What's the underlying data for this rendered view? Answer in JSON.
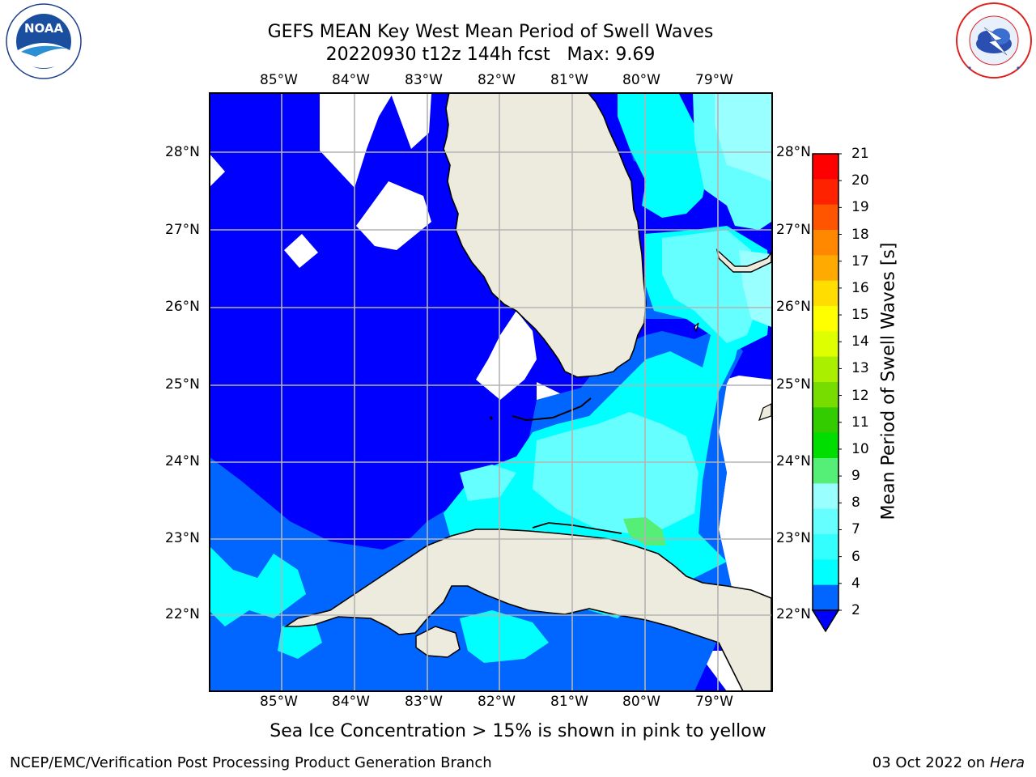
{
  "title": {
    "line1": "GEFS MEAN Key West Mean Period of Swell Waves",
    "line2": "20220930 t12z 144h fcst   Max: 9.69"
  },
  "map": {
    "lon_labels": [
      "85°W",
      "84°W",
      "83°W",
      "82°W",
      "81°W",
      "80°W",
      "79°W"
    ],
    "lat_labels": [
      "28°N",
      "27°N",
      "26°N",
      "25°N",
      "24°N",
      "23°N",
      "22°N"
    ],
    "colors": {
      "land": "#ecebdd",
      "grid": "#b4b4b4",
      "coast": "#000000"
    }
  },
  "colorbar": {
    "label": "Mean Period of Swell Waves [s]",
    "ticks": [
      "2",
      "4",
      "6",
      "7",
      "8",
      "9",
      "10",
      "11",
      "12",
      "13",
      "14",
      "15",
      "16",
      "17",
      "18",
      "19",
      "20",
      "21"
    ],
    "colors": [
      "#0000ff",
      "#0066ff",
      "#00ffff",
      "#33ffff",
      "#66ffff",
      "#99ffff",
      "#55ee77",
      "#00dd00",
      "#33cc00",
      "#77dd00",
      "#aaee00",
      "#ddff00",
      "#ffff00",
      "#ffdd00",
      "#ffaa00",
      "#ff8800",
      "#ff5500",
      "#ff2200",
      "#ff0000"
    ]
  },
  "logos": {
    "noaa": "NOAA",
    "nws": "NATIONAL WEATHER SERVICE"
  },
  "note": "Sea Ice Concentration > 15% is shown in pink to yellow",
  "footer": {
    "left": "NCEP/EMC/Verification Post Processing Product Generation Branch",
    "date": "03 Oct 2022 on",
    "machine": "Hera"
  }
}
